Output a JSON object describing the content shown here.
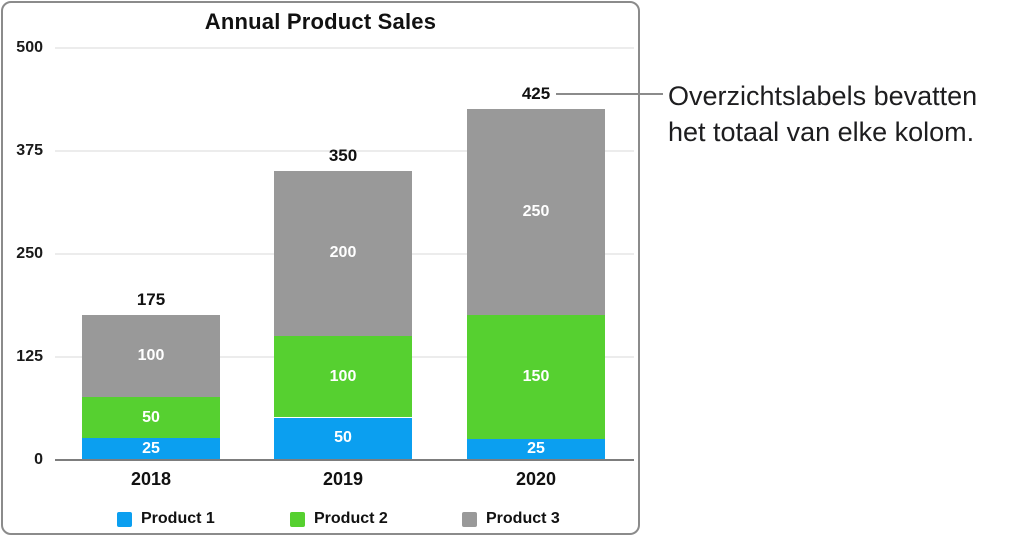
{
  "chart_data": {
    "type": "bar",
    "subtype": "stacked",
    "title": "Annual Product Sales",
    "categories": [
      "2018",
      "2019",
      "2020"
    ],
    "series": [
      {
        "name": "Product 1",
        "color": "#0b9ff0",
        "values": [
          25,
          50,
          25
        ]
      },
      {
        "name": "Product 2",
        "color": "#56d030",
        "values": [
          50,
          100,
          150
        ]
      },
      {
        "name": "Product 3",
        "color": "#999999",
        "values": [
          100,
          200,
          250
        ]
      }
    ],
    "totals": [
      175,
      350,
      425
    ],
    "y_ticks": [
      0,
      125,
      250,
      375,
      500
    ],
    "ylim": [
      0,
      500
    ],
    "grid": true,
    "legend_position": "bottom",
    "colors": {
      "gridline": "#ececec",
      "axis_line": "#7d7d7d",
      "card_border": "#8b8b8b",
      "segment_label": "#ffffff",
      "text": "#111111"
    }
  },
  "annotation": {
    "line1": "Overzichtslabels bevatten",
    "line2": "het totaal van elke kolom."
  }
}
